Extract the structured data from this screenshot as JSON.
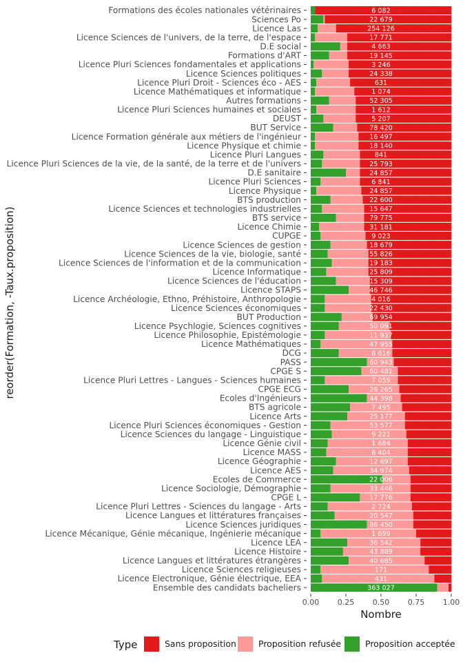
{
  "chart_data": {
    "type": "bar",
    "orientation": "horizontal",
    "stacked": true,
    "xlabel": "Nombre",
    "ylabel": "reorder(Formation, -Taux.proposition)",
    "xlim": [
      0,
      1
    ],
    "xticks": [
      "0.00",
      "0.25",
      "0.50",
      "0.75",
      "1.00"
    ],
    "grid": true,
    "legend": {
      "title": "Type",
      "position": "bottom",
      "entries": [
        {
          "name": "Sans proposition",
          "color": "#e31a1c"
        },
        {
          "name": "Proposition refusée",
          "color": "#fb9a99"
        },
        {
          "name": "Proposition acceptée",
          "color": "#33a02c"
        }
      ]
    },
    "rows": [
      {
        "name": "Formations des écoles nationales vétérinaires",
        "count": "6 082",
        "accepted": 0.03,
        "refused": 0.0
      },
      {
        "name": "Sciences Po",
        "count": "22 679",
        "accepted": 0.09,
        "refused": 0.01
      },
      {
        "name": "Licence Las",
        "count": "254 126",
        "accepted": 0.05,
        "refused": 0.13
      },
      {
        "name": "Licence Sciences de l'univers, de la terre, de l'espace",
        "count": "17 771",
        "accepted": 0.03,
        "refused": 0.23
      },
      {
        "name": "D.E social",
        "count": "4 663",
        "accepted": 0.21,
        "refused": 0.05
      },
      {
        "name": "Formations d'ART",
        "count": "19 145",
        "accepted": 0.13,
        "refused": 0.13
      },
      {
        "name": "Licence Pluri Sciences fondamentales et applications",
        "count": "3 246",
        "accepted": 0.02,
        "refused": 0.25
      },
      {
        "name": "Licence Sciences politiques",
        "count": "24 338",
        "accepted": 0.08,
        "refused": 0.19
      },
      {
        "name": "Licence Pluri Droit - Sciences éco - AES",
        "count": "631",
        "accepted": 0.04,
        "refused": 0.24
      },
      {
        "name": "Licence Mathématiques et informatique",
        "count": "1 074",
        "accepted": 0.03,
        "refused": 0.28
      },
      {
        "name": "Autres formations",
        "count": "52 305",
        "accepted": 0.13,
        "refused": 0.19
      },
      {
        "name": "Licence Pluri Sciences humaines et sociales",
        "count": "1 612",
        "accepted": 0.04,
        "refused": 0.28
      },
      {
        "name": "DEUST",
        "count": "5 207",
        "accepted": 0.09,
        "refused": 0.23
      },
      {
        "name": "BUT Service",
        "count": "78 420",
        "accepted": 0.16,
        "refused": 0.17
      },
      {
        "name": "Licence Formation générale aux métiers de l'ingénieur",
        "count": "16 497",
        "accepted": 0.03,
        "refused": 0.31
      },
      {
        "name": "Licence Physique et chimie",
        "count": "18 140",
        "accepted": 0.03,
        "refused": 0.31
      },
      {
        "name": "Licence Pluri Langues",
        "count": "841",
        "accepted": 0.09,
        "refused": 0.26
      },
      {
        "name": "Licence Pluri Sciences de la vie, de la santé, de la terre et de l'univers",
        "count": "25 793",
        "accepted": 0.08,
        "refused": 0.27
      },
      {
        "name": "D.E sanitaire",
        "count": "24 857",
        "accepted": 0.25,
        "refused": 0.1
      },
      {
        "name": "Licence Pluri Sciences",
        "count": "6 841",
        "accepted": 0.07,
        "refused": 0.28
      },
      {
        "name": "Licence Physique",
        "count": "24 857",
        "accepted": 0.04,
        "refused": 0.32
      },
      {
        "name": "BTS production",
        "count": "22 600",
        "accepted": 0.14,
        "refused": 0.23
      },
      {
        "name": "Licence Sciences et technologies industrielles",
        "count": "15 647",
        "accepted": 0.08,
        "refused": 0.3
      },
      {
        "name": "BTS service",
        "count": "79 775",
        "accepted": 0.18,
        "refused": 0.2
      },
      {
        "name": "Licence Chimie",
        "count": "31 181",
        "accepted": 0.06,
        "refused": 0.32
      },
      {
        "name": "CUPGE",
        "count": "9 023",
        "accepted": 0.07,
        "refused": 0.32
      },
      {
        "name": "Licence Sciences de gestion",
        "count": "18 679",
        "accepted": 0.14,
        "refused": 0.26
      },
      {
        "name": "Licence Sciences de la vie, biologie, santé",
        "count": "55 826",
        "accepted": 0.12,
        "refused": 0.29
      },
      {
        "name": "Licence Sciences de l'information et de la communication",
        "count": "19 183",
        "accepted": 0.15,
        "refused": 0.26
      },
      {
        "name": "Licence Informatique",
        "count": "25 809",
        "accepted": 0.11,
        "refused": 0.3
      },
      {
        "name": "Licence Sciences de l'éducation",
        "count": "15 309",
        "accepted": 0.18,
        "refused": 0.24
      },
      {
        "name": "Licence STAPS",
        "count": "46 746",
        "accepted": 0.27,
        "refused": 0.15
      },
      {
        "name": "Licence Archéologie, Ethno, Préhistoire, Anthropologie",
        "count": "4 016",
        "accepted": 0.1,
        "refused": 0.33
      },
      {
        "name": "Licence Sciences économiques",
        "count": "22 430",
        "accepted": 0.1,
        "refused": 0.33
      },
      {
        "name": "BUT Production",
        "count": "69 954",
        "accepted": 0.22,
        "refused": 0.22
      },
      {
        "name": "Licence Psychlogie, Sciences cognitives",
        "count": "50 091",
        "accepted": 0.2,
        "refused": 0.36
      },
      {
        "name": "Licence Philosophie, Epistémologie",
        "count": "11 937",
        "accepted": 0.1,
        "refused": 0.47
      },
      {
        "name": "Licence Mathématiques",
        "count": "47 955",
        "accepted": 0.07,
        "refused": 0.51
      },
      {
        "name": "DCG",
        "count": "8 616",
        "accepted": 0.2,
        "refused": 0.38
      },
      {
        "name": "PASS",
        "count": "60 943",
        "accepted": 0.4,
        "refused": 0.19
      },
      {
        "name": "CPGE S",
        "count": "60 481",
        "accepted": 0.36,
        "refused": 0.26
      },
      {
        "name": "Licence Pluri Lettres - Langues - Sciences humaines",
        "count": "7 059",
        "accepted": 0.1,
        "refused": 0.52
      },
      {
        "name": "CPGE ECG",
        "count": "26 265",
        "accepted": 0.27,
        "refused": 0.36
      },
      {
        "name": "Ecoles d'Ingénieurs",
        "count": "44 398",
        "accepted": 0.4,
        "refused": 0.24
      },
      {
        "name": "BTS agricole",
        "count": "7 495",
        "accepted": 0.28,
        "refused": 0.37
      },
      {
        "name": "Licence Arts",
        "count": "25 177",
        "accepted": 0.26,
        "refused": 0.41
      },
      {
        "name": "Licence Pluri Sciences économiques - Gestion",
        "count": "53 577",
        "accepted": 0.14,
        "refused": 0.53
      },
      {
        "name": "Licence Sciences du langage - Linguistique",
        "count": "9 221",
        "accepted": 0.15,
        "refused": 0.53
      },
      {
        "name": "Licence Génie civil",
        "count": "1 684",
        "accepted": 0.12,
        "refused": 0.57
      },
      {
        "name": "Licence MASS",
        "count": "8 404",
        "accepted": 0.11,
        "refused": 0.58
      },
      {
        "name": "Licence Géographie",
        "count": "12 697",
        "accepted": 0.18,
        "refused": 0.51
      },
      {
        "name": "Licence AES",
        "count": "34 974",
        "accepted": 0.16,
        "refused": 0.54
      },
      {
        "name": "Ecoles de Commerce",
        "count": "22 006",
        "accepted": 0.51,
        "refused": 0.2
      },
      {
        "name": "Licence Sociologie, Démographie",
        "count": "33 446",
        "accepted": 0.14,
        "refused": 0.57
      },
      {
        "name": "CPGE L",
        "count": "17 776",
        "accepted": 0.35,
        "refused": 0.36
      },
      {
        "name": "Licence Pluri Lettres - Sciences du langage - Arts",
        "count": "2 724",
        "accepted": 0.12,
        "refused": 0.6
      },
      {
        "name": "Licence Langues et littératures françaises",
        "count": "20 547",
        "accepted": 0.17,
        "refused": 0.56
      },
      {
        "name": "Licence Sciences juridiques",
        "count": "86 450",
        "accepted": 0.4,
        "refused": 0.33
      },
      {
        "name": "Licence Mécanique, Génie mécanique, Ingénierie mécanique",
        "count": "1 699",
        "accepted": 0.07,
        "refused": 0.68
      },
      {
        "name": "Licence LEA",
        "count": "36 542",
        "accepted": 0.26,
        "refused": 0.52
      },
      {
        "name": "Licence Histoire",
        "count": "43 889",
        "accepted": 0.23,
        "refused": 0.55
      },
      {
        "name": "Licence Langues et littératures étrangères",
        "count": "40 685",
        "accepted": 0.27,
        "refused": 0.54
      },
      {
        "name": "Licence Sciences religieuses",
        "count": "171",
        "accepted": 0.07,
        "refused": 0.77
      },
      {
        "name": "Licence Electronique, Génie électrique, EEA",
        "count": "431",
        "accepted": 0.08,
        "refused": 0.8
      },
      {
        "name": "Ensemble des candidats bacheliers",
        "count": "363 027",
        "accepted": 0.9,
        "refused": 0.08
      }
    ]
  }
}
